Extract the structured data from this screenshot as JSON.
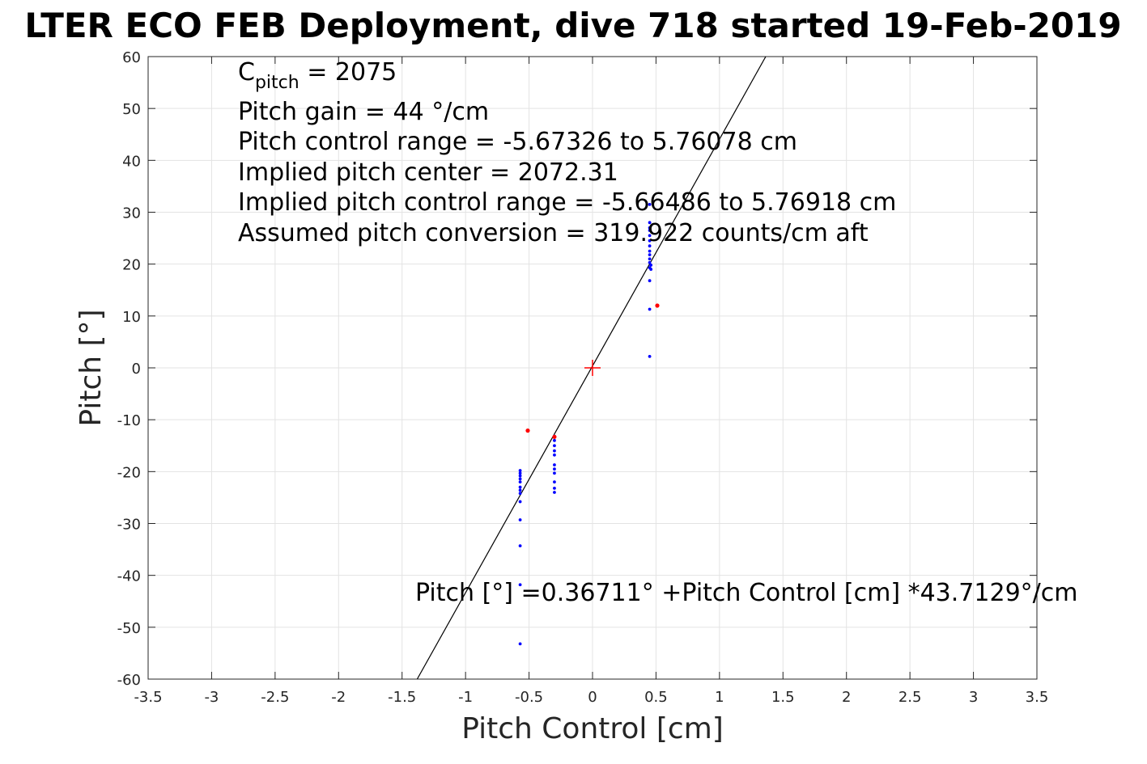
{
  "chart_data": {
    "type": "scatter",
    "title": "LTER ECO FEB Deployment, dive 718 started 19-Feb-2019",
    "xlabel": "Pitch Control [cm]",
    "ylabel": "Pitch [°]",
    "xlim": [
      -3.5,
      3.5
    ],
    "ylim": [
      -60,
      60
    ],
    "xticks": [
      -3.5,
      -3,
      -2.5,
      -2,
      -1.5,
      -1,
      -0.5,
      0,
      0.5,
      1,
      1.5,
      2,
      2.5,
      3,
      3.5
    ],
    "yticks": [
      -60,
      -50,
      -40,
      -30,
      -20,
      -10,
      0,
      10,
      20,
      30,
      40,
      50,
      60
    ],
    "grid": true,
    "annotations": {
      "cpitch_main": "C",
      "cpitch_sub": "pitch",
      "cpitch_value": " = 2075",
      "line1": "Pitch gain = 44 °/cm",
      "line2": "Pitch control range = -5.67326 to 5.76078 cm",
      "line3": "Implied pitch center = 2072.31",
      "line4": "Implied pitch control range = -5.66486 to 5.76918 cm",
      "line5": "Assumed pitch conversion = 319.922 counts/cm aft",
      "fit_label": "Pitch [°] =0.36711° +Pitch Control [cm] *43.7129°/cm"
    },
    "fit_line": {
      "intercept": 0.36711,
      "slope": 43.7129,
      "color": "#000000"
    },
    "center_marker": {
      "x": 0,
      "y": 0,
      "color": "#ff0000"
    },
    "series": [
      {
        "color": "#0000ff",
        "points": [
          [
            0.45,
            31.5
          ],
          [
            0.45,
            28.0
          ],
          [
            0.45,
            27.0
          ],
          [
            0.45,
            26.5
          ],
          [
            0.45,
            25.5
          ],
          [
            0.45,
            24.5
          ],
          [
            0.45,
            23.5
          ],
          [
            0.45,
            22.5
          ],
          [
            0.45,
            21.8
          ],
          [
            0.45,
            21.0
          ],
          [
            0.45,
            20.3
          ],
          [
            0.46,
            19.8
          ],
          [
            0.45,
            19.3
          ],
          [
            0.46,
            19.0
          ],
          [
            0.45,
            16.8
          ],
          [
            0.45,
            11.3
          ],
          [
            0.45,
            2.2
          ],
          [
            -0.3,
            -13.2
          ],
          [
            -0.3,
            -14.0
          ],
          [
            -0.3,
            -15.0
          ],
          [
            -0.3,
            -16.0
          ],
          [
            -0.3,
            -16.8
          ],
          [
            -0.3,
            -18.7
          ],
          [
            -0.3,
            -19.5
          ],
          [
            -0.3,
            -20.3
          ],
          [
            -0.3,
            -22.0
          ],
          [
            -0.3,
            -23.2
          ],
          [
            -0.3,
            -24.0
          ],
          [
            -0.57,
            -19.8
          ],
          [
            -0.57,
            -20.3
          ],
          [
            -0.57,
            -20.8
          ],
          [
            -0.57,
            -21.4
          ],
          [
            -0.57,
            -22.0
          ],
          [
            -0.57,
            -23.0
          ],
          [
            -0.57,
            -23.6
          ],
          [
            -0.57,
            -24.2
          ],
          [
            -0.57,
            -25.8
          ],
          [
            -0.57,
            -29.3
          ],
          [
            -0.57,
            -34.3
          ],
          [
            -0.57,
            -41.8
          ],
          [
            -0.57,
            -53.2
          ]
        ]
      },
      {
        "color": "#ff0000",
        "points": [
          [
            -0.51,
            -12.1
          ],
          [
            0.51,
            12.0
          ],
          [
            -0.3,
            -13.3
          ]
        ]
      }
    ]
  }
}
